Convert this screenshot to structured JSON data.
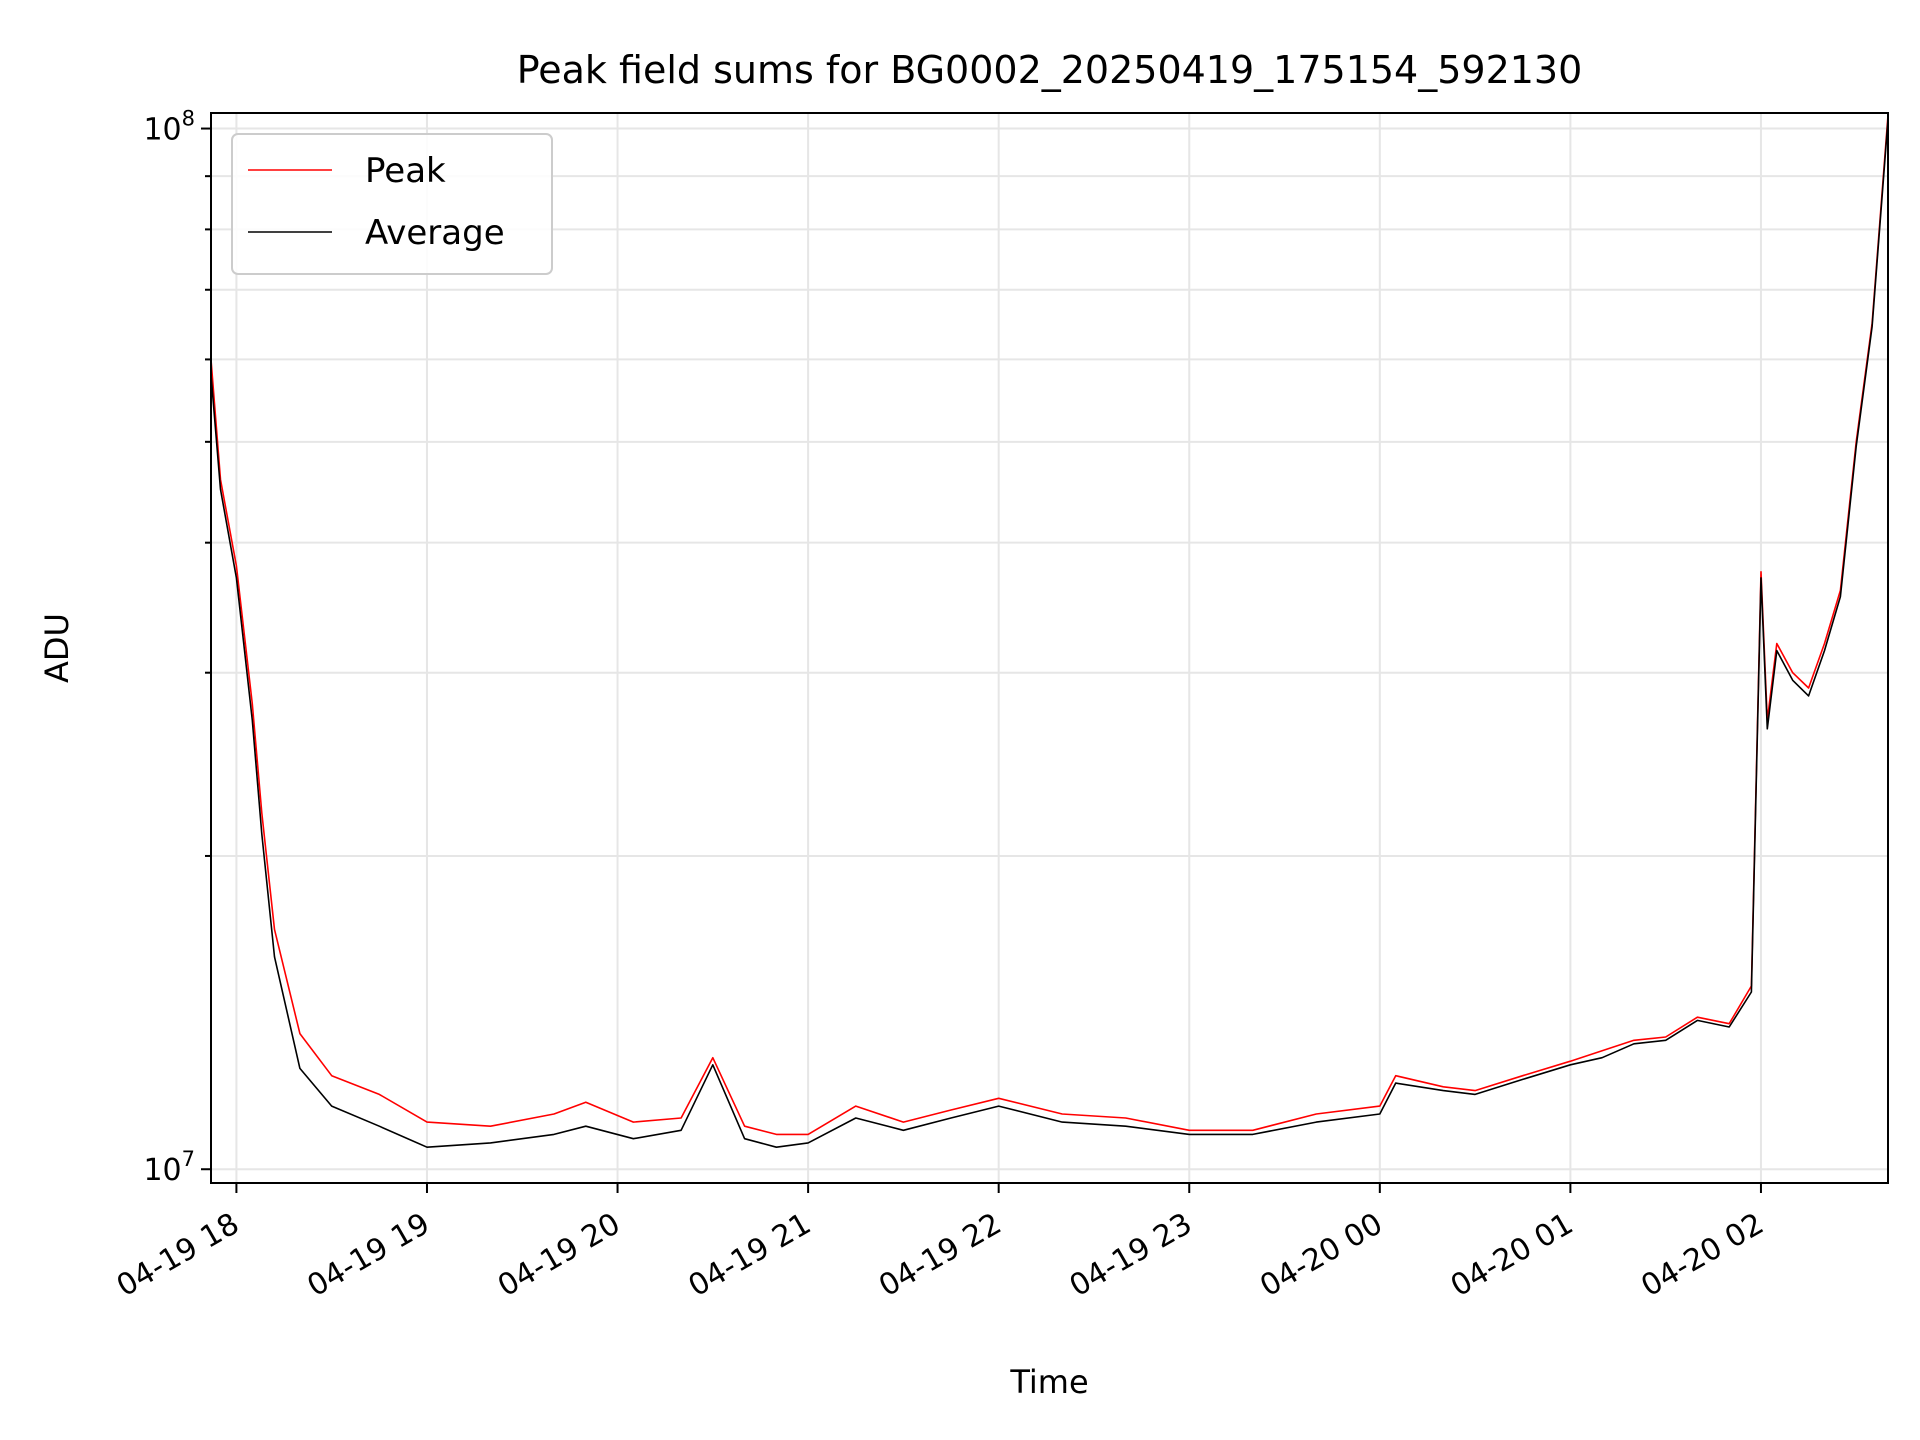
{
  "chart_data": {
    "type": "line",
    "title": "Peak field sums for BG0002_20250419_175154_592130",
    "xlabel": "Time",
    "ylabel": "ADU",
    "yscale": "log",
    "ylim": [
      9700000,
      103500000
    ],
    "xlim": [
      "2025-04-19 17:52",
      "2025-04-20 02:40"
    ],
    "x_ticks": [
      "04-19 18",
      "04-19 19",
      "04-19 20",
      "04-19 21",
      "04-19 22",
      "04-19 23",
      "04-20 00",
      "04-20 01",
      "04-20 02"
    ],
    "y_ticks": [
      {
        "value": 10000000,
        "base": "10",
        "exp": "7"
      },
      {
        "value": 100000000,
        "base": "10",
        "exp": "8"
      }
    ],
    "grid": true,
    "legend_position": "upper left",
    "colors": {
      "peak": "#ff0000",
      "average": "#000000",
      "grid": "#e6e6e6"
    },
    "x": [
      "2025-04-19 17:52",
      "2025-04-19 17:55",
      "2025-04-19 18:00",
      "2025-04-19 18:05",
      "2025-04-19 18:08",
      "2025-04-19 18:12",
      "2025-04-19 18:20",
      "2025-04-19 18:30",
      "2025-04-19 18:45",
      "2025-04-19 19:00",
      "2025-04-19 19:20",
      "2025-04-19 19:40",
      "2025-04-19 19:50",
      "2025-04-19 20:05",
      "2025-04-19 20:20",
      "2025-04-19 20:30",
      "2025-04-19 20:40",
      "2025-04-19 20:50",
      "2025-04-19 21:00",
      "2025-04-19 21:15",
      "2025-04-19 21:30",
      "2025-04-19 21:45",
      "2025-04-19 22:00",
      "2025-04-19 22:20",
      "2025-04-19 22:40",
      "2025-04-19 23:00",
      "2025-04-19 23:20",
      "2025-04-19 23:40",
      "2025-04-20 00:00",
      "2025-04-20 00:05",
      "2025-04-20 00:20",
      "2025-04-20 00:30",
      "2025-04-20 00:45",
      "2025-04-20 01:00",
      "2025-04-20 01:10",
      "2025-04-20 01:20",
      "2025-04-20 01:30",
      "2025-04-20 01:40",
      "2025-04-20 01:50",
      "2025-04-20 01:57",
      "2025-04-20 02:00",
      "2025-04-20 02:02",
      "2025-04-20 02:05",
      "2025-04-20 02:10",
      "2025-04-20 02:15",
      "2025-04-20 02:20",
      "2025-04-20 02:25",
      "2025-04-20 02:30",
      "2025-04-20 02:35",
      "2025-04-20 02:40"
    ],
    "series": [
      {
        "name": "Peak",
        "values": [
          60000000,
          46000000,
          38000000,
          28000000,
          22000000,
          17000000,
          13500000,
          12300000,
          11800000,
          11100000,
          11000000,
          11300000,
          11600000,
          11100000,
          11200000,
          12800000,
          11000000,
          10800000,
          10800000,
          11500000,
          11100000,
          11400000,
          11700000,
          11300000,
          11200000,
          10900000,
          10900000,
          11300000,
          11500000,
          12300000,
          12000000,
          11900000,
          12300000,
          12700000,
          13000000,
          13300000,
          13400000,
          14000000,
          13800000,
          15000000,
          37500000,
          27000000,
          32000000,
          30000000,
          29000000,
          32000000,
          36000000,
          50000000,
          65000000,
          103000000
        ]
      },
      {
        "name": "Average",
        "values": [
          58000000,
          45000000,
          37000000,
          27000000,
          21000000,
          16000000,
          12500000,
          11500000,
          11000000,
          10500000,
          10600000,
          10800000,
          11000000,
          10700000,
          10900000,
          12600000,
          10700000,
          10500000,
          10600000,
          11200000,
          10900000,
          11200000,
          11500000,
          11100000,
          11000000,
          10800000,
          10800000,
          11100000,
          11300000,
          12100000,
          11900000,
          11800000,
          12200000,
          12600000,
          12800000,
          13200000,
          13300000,
          13900000,
          13700000,
          14800000,
          37000000,
          26500000,
          31500000,
          29500000,
          28500000,
          31500000,
          35500000,
          49500000,
          64500000,
          102000000
        ]
      }
    ]
  }
}
